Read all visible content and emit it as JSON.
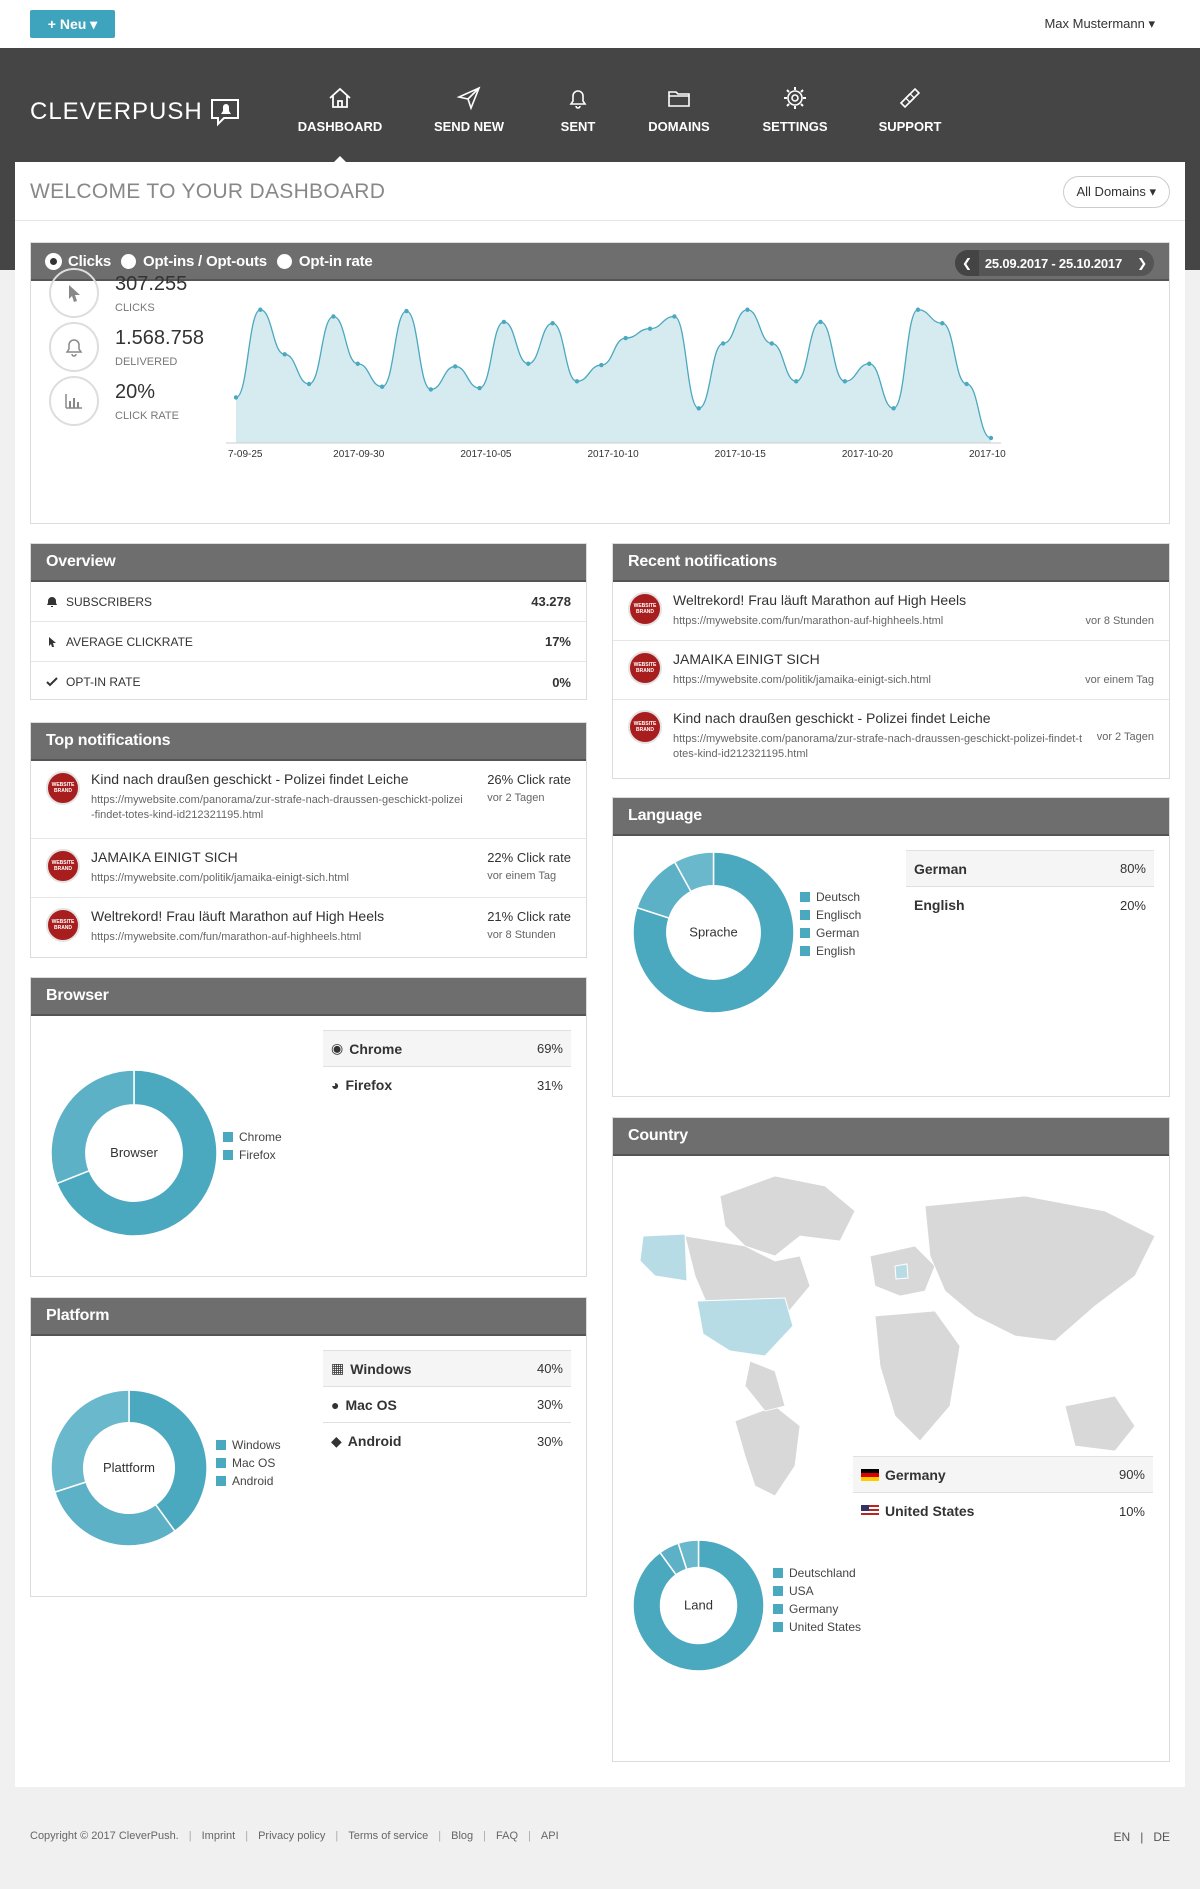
{
  "topbar": {
    "new_label": "+ Neu ▾",
    "user": "Max Mustermann ▾"
  },
  "brand": {
    "name": "CLEVERPUSH"
  },
  "nav": [
    {
      "label": "DASHBOARD",
      "icon": "home-icon",
      "active": true
    },
    {
      "label": "SEND NEW",
      "icon": "send-icon",
      "active": false
    },
    {
      "label": "SENT",
      "icon": "bell-icon",
      "active": false
    },
    {
      "label": "DOMAINS",
      "icon": "folder-icon",
      "active": false
    },
    {
      "label": "SETTINGS",
      "icon": "gear-icon",
      "active": false
    },
    {
      "label": "SUPPORT",
      "icon": "bandage-icon",
      "active": false
    }
  ],
  "page": {
    "title": "WELCOME TO YOUR DASHBOARD",
    "domain_filter": "All Domains ▾"
  },
  "stats_panel": {
    "options": [
      "Clicks",
      "Opt-ins / Opt-outs",
      "Opt-in rate"
    ],
    "date_range": "25.09.2017 - 25.10.2017",
    "stats": [
      {
        "value": "307.255",
        "label": "CLICKS",
        "icon": "cursor-icon"
      },
      {
        "value": "1.568.758",
        "label": "DELIVERED",
        "icon": "bell-icon"
      },
      {
        "value": "20%",
        "label": "CLICK RATE",
        "icon": "bar-chart-icon"
      }
    ]
  },
  "chart_data": {
    "type": "area",
    "x_tick_labels": [
      "7-09-25",
      "2017-09-30",
      "2017-10-05",
      "2017-10-10",
      "2017-10-15",
      "2017-10-20",
      "2017-10"
    ],
    "values": [
      30,
      95,
      62,
      40,
      90,
      55,
      38,
      94,
      36,
      53,
      37,
      86,
      55,
      85,
      42,
      54,
      74,
      81,
      90,
      22,
      70,
      95,
      70,
      42,
      86,
      42,
      55,
      22,
      95,
      85,
      40,
      0
    ],
    "ylim": [
      0,
      100
    ],
    "color": "#4aa8bf",
    "fill": "#d6ebf0"
  },
  "overview": {
    "title": "Overview",
    "rows": [
      {
        "label": "SUBSCRIBERS",
        "value": "43.278",
        "icon": "bell-icon"
      },
      {
        "label": "AVERAGE CLICKRATE",
        "value": "17%",
        "icon": "cursor-icon"
      },
      {
        "label": "OPT-IN RATE",
        "value": "0%",
        "icon": "check-icon"
      }
    ]
  },
  "top_notifications": {
    "title": "Top notifications",
    "items": [
      {
        "title": "Kind nach draußen geschickt - Polizei findet Leiche",
        "url": "https://mywebsite.com/panorama/zur-strafe-nach-draussen-geschickt-polizei-findet-totes-kind-id212321195.html",
        "rate": "26% Click rate",
        "ago": "vor 2 Tagen"
      },
      {
        "title": "JAMAIKA EINIGT SICH",
        "url": "https://mywebsite.com/politik/jamaika-einigt-sich.html",
        "rate": "22% Click rate",
        "ago": "vor einem Tag"
      },
      {
        "title": "Weltrekord! Frau läuft Marathon auf High Heels",
        "url": "https://mywebsite.com/fun/marathon-auf-highheels.html",
        "rate": "21% Click rate",
        "ago": "vor 8 Stunden"
      }
    ]
  },
  "recent_notifications": {
    "title": "Recent notifications",
    "items": [
      {
        "title": "Weltrekord! Frau läuft Marathon auf High Heels",
        "url": "https://mywebsite.com/fun/marathon-auf-highheels.html",
        "ago": "vor 8 Stunden"
      },
      {
        "title": "JAMAIKA EINIGT SICH",
        "url": "https://mywebsite.com/politik/jamaika-einigt-sich.html",
        "ago": "vor einem Tag"
      },
      {
        "title": "Kind nach draußen geschickt - Polizei findet Leiche",
        "url": "https://mywebsite.com/panorama/zur-strafe-nach-draussen-geschickt-polizei-findet-totes-kind-id212321195.html",
        "ago": "vor 2 Tagen"
      }
    ]
  },
  "brand_badge": "WEBSITE BRAND",
  "browser": {
    "title": "Browser",
    "center": "Browser",
    "legend": [
      "Chrome",
      "Firefox"
    ],
    "rows": [
      {
        "name": "Chrome",
        "pct": "69%",
        "icon": "chrome-icon"
      },
      {
        "name": "Firefox",
        "pct": "31%",
        "icon": "firefox-icon"
      }
    ],
    "slices": [
      69,
      31
    ]
  },
  "platform": {
    "title": "Platform",
    "center": "Plattform",
    "legend": [
      "Windows",
      "Mac OS",
      "Android"
    ],
    "rows": [
      {
        "name": "Windows",
        "pct": "40%",
        "icon": "windows-icon"
      },
      {
        "name": "Mac OS",
        "pct": "30%",
        "icon": "apple-icon"
      },
      {
        "name": "Android",
        "pct": "30%",
        "icon": "android-icon"
      }
    ],
    "slices": [
      40,
      30,
      30
    ]
  },
  "language": {
    "title": "Language",
    "center": "Sprache",
    "legend": [
      "Deutsch",
      "Englisch",
      "German",
      "English"
    ],
    "rows": [
      {
        "name": "German",
        "pct": "80%"
      },
      {
        "name": "English",
        "pct": "20%"
      }
    ],
    "slices": [
      80,
      12,
      8
    ]
  },
  "country": {
    "title": "Country",
    "center": "Land",
    "legend": [
      "Deutschland",
      "USA",
      "Germany",
      "United States"
    ],
    "rows": [
      {
        "name": "Germany",
        "pct": "90%",
        "icon": "flag-de-icon"
      },
      {
        "name": "United States",
        "pct": "10%",
        "icon": "flag-us-icon"
      }
    ],
    "slices": [
      90,
      5,
      5
    ]
  },
  "footer": {
    "links": [
      "Copyright © 2017 CleverPush.",
      "Imprint",
      "Privacy policy",
      "Terms of service",
      "Blog",
      "FAQ",
      "API"
    ],
    "langs": [
      "EN",
      "DE"
    ]
  },
  "colors": {
    "accent": "#3ea3bc",
    "header": "#454545",
    "panel_head": "#6e6e6e",
    "donut": "#4aa8bf",
    "brand_red": "#a81e1e"
  }
}
